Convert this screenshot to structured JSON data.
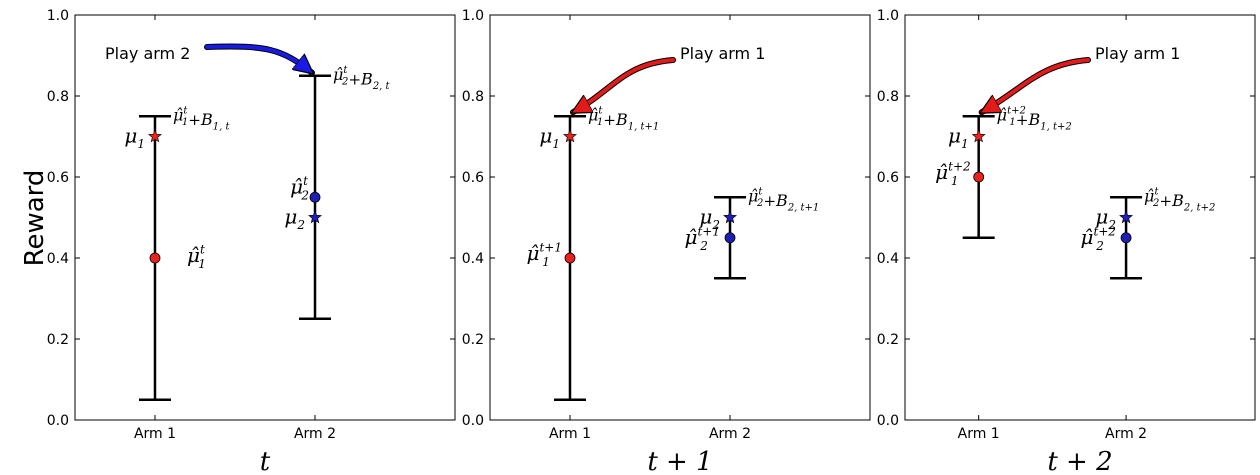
{
  "ylabel": "Reward",
  "chart_data": [
    {
      "type": "errorbar",
      "xlabel": "t",
      "ylabel": "Reward",
      "ylim": [
        0.0,
        1.0
      ],
      "yticks": [
        "0.0",
        "0.2",
        "0.4",
        "0.6",
        "0.8",
        "1.0"
      ],
      "categories": [
        "Arm 1",
        "Arm 2"
      ],
      "arms": [
        {
          "lower": 0.05,
          "upper": 0.75,
          "estimate": 0.4,
          "true_mean": 0.7,
          "color": "#e8231f",
          "true_label": "μ1",
          "est_label": "μ̂1^t",
          "ucb_label": "μ̂1^t+B1,t"
        },
        {
          "lower": 0.25,
          "upper": 0.85,
          "estimate": 0.55,
          "true_mean": 0.5,
          "color": "#1f1fb4",
          "true_label": "μ2",
          "est_label": "μ̂2^t",
          "ucb_label": "μ̂2^t+B2,t"
        }
      ],
      "annotation": {
        "text": "Play arm 2",
        "arm": 2,
        "color": "#1a1ae6"
      }
    },
    {
      "type": "errorbar",
      "xlabel": "t+1",
      "ylim": [
        0.0,
        1.0
      ],
      "yticks": [
        "0.0",
        "0.2",
        "0.4",
        "0.6",
        "0.8",
        "1.0"
      ],
      "categories": [
        "Arm 1",
        "Arm 2"
      ],
      "arms": [
        {
          "lower": 0.05,
          "upper": 0.75,
          "estimate": 0.4,
          "true_mean": 0.7,
          "color": "#e8231f",
          "true_label": "μ1",
          "est_label": "μ̂1^t+1",
          "ucb_label": "μ̂1^t+B1,t+1"
        },
        {
          "lower": 0.35,
          "upper": 0.55,
          "estimate": 0.45,
          "true_mean": 0.5,
          "color": "#1f1fb4",
          "true_label": "μ2",
          "est_label": "μ̂2^t+1",
          "ucb_label": "μ̂2^t+B2,t+1"
        }
      ],
      "annotation": {
        "text": "Play arm 1",
        "arm": 1,
        "color": "#e31a1a"
      }
    },
    {
      "type": "errorbar",
      "xlabel": "t+2",
      "ylim": [
        0.0,
        1.0
      ],
      "yticks": [
        "0.0",
        "0.2",
        "0.4",
        "0.6",
        "0.8",
        "1.0"
      ],
      "categories": [
        "Arm 1",
        "Arm 2"
      ],
      "arms": [
        {
          "lower": 0.45,
          "upper": 0.75,
          "estimate": 0.6,
          "true_mean": 0.7,
          "color": "#e8231f",
          "true_label": "μ1",
          "est_label": "μ̂1^t+2",
          "ucb_label": "μ̂1^t+2+B1,t+2"
        },
        {
          "lower": 0.35,
          "upper": 0.55,
          "estimate": 0.45,
          "true_mean": 0.5,
          "color": "#1f1fb4",
          "true_label": "μ2",
          "est_label": "μ̂2^t+2",
          "ucb_label": "μ̂2^t+B2,t+2"
        }
      ],
      "annotation": {
        "text": "Play arm 1",
        "arm": 1,
        "color": "#e31a1a"
      }
    }
  ]
}
